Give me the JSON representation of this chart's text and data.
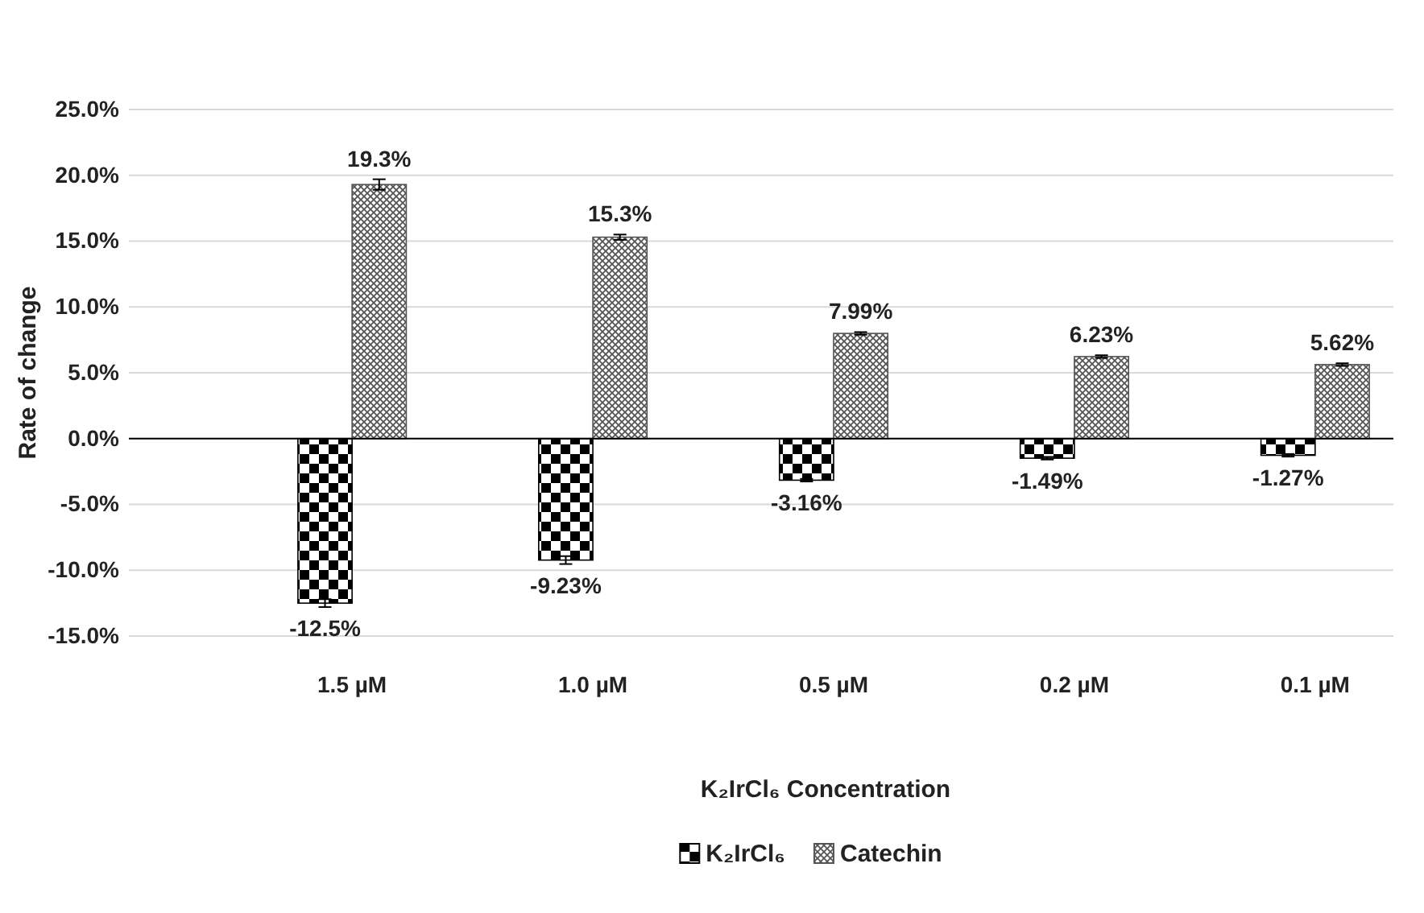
{
  "chart_data": {
    "type": "bar",
    "categories": [
      "1.5 µM",
      "1.0 µM",
      "0.5 µM",
      "0.2 µM",
      "0.1 µM"
    ],
    "xlabel": "K₂IrCl₆ Concentration",
    "ylabel": "Rate of change",
    "series": [
      {
        "name": "K₂IrCl₆",
        "color": "#000000",
        "values": [
          -12.5,
          -9.23,
          -3.16,
          -1.49,
          -1.27
        ],
        "errors": [
          0.3,
          0.3,
          0.1,
          0.1,
          0.1
        ],
        "value_labels": [
          "-12.5%",
          "-9.23%",
          "-3.16%",
          "-1.49%",
          "-1.27%"
        ]
      },
      {
        "name": "Catechin",
        "color": "#555555",
        "values": [
          19.3,
          15.3,
          7.99,
          6.23,
          5.62
        ],
        "errors": [
          0.4,
          0.2,
          0.1,
          0.1,
          0.1
        ],
        "value_labels": [
          "19.3%",
          "15.3%",
          "7.99%",
          "6.23%",
          "5.62%"
        ]
      }
    ],
    "ylim": [
      -15,
      25
    ],
    "yticks": [
      {
        "value": -15,
        "label": "-15.0%"
      },
      {
        "value": -10,
        "label": "-10.0%"
      },
      {
        "value": -5,
        "label": "-5.0%"
      },
      {
        "value": 0,
        "label": "0.0%"
      },
      {
        "value": 5,
        "label": "5.0%"
      },
      {
        "value": 10,
        "label": "10.0%"
      },
      {
        "value": 15,
        "label": "15.0%"
      },
      {
        "value": 20,
        "label": "20.0%"
      },
      {
        "value": 25,
        "label": "25.0%"
      }
    ],
    "grid": "y",
    "legend": "bottom"
  }
}
